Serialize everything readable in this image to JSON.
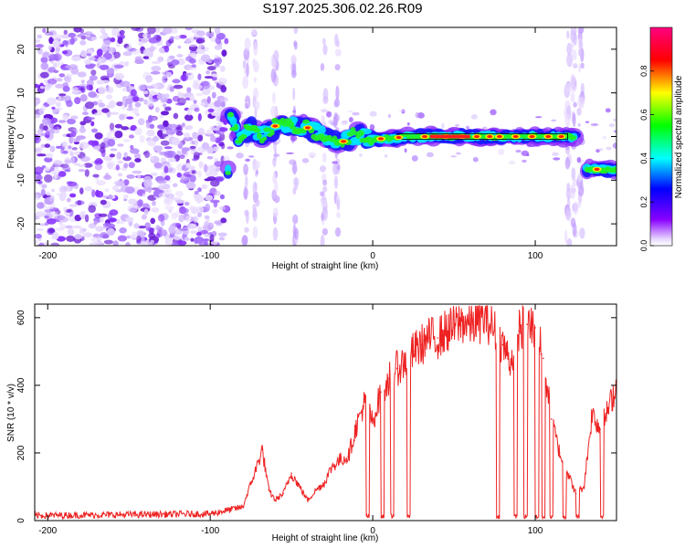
{
  "title": "S197.2025.306.02.26.R09",
  "chart_data": [
    {
      "type": "heatmap",
      "title": "S197.2025.306.02.26.R09",
      "xlabel": "Height of straight line (km)",
      "ylabel": "Frequency (Hz)",
      "xlim": [
        -208,
        150
      ],
      "ylim": [
        -25,
        25
      ],
      "xticks": [
        -200,
        -100,
        0,
        100
      ],
      "yticks": [
        -20,
        -10,
        0,
        10,
        20
      ],
      "colorbar": {
        "label": "Normalized spectral amplitude",
        "range": [
          0,
          1
        ],
        "ticks": [
          "0.0",
          "0.2",
          "0.4",
          "0.6",
          "0.8"
        ],
        "colors": [
          "#ffffff",
          "#8800ff",
          "#0000ff",
          "#00ffff",
          "#00ff00",
          "#ffff00",
          "#ff0000",
          "#ff0080"
        ]
      },
      "noise_region_km": [
        -208,
        -90
      ],
      "signal_track": [
        {
          "x": -88,
          "f": 5
        },
        {
          "x": -82,
          "f": -1
        },
        {
          "x": -76,
          "f": 2
        },
        {
          "x": -68,
          "f": 0
        },
        {
          "x": -58,
          "f": 3
        },
        {
          "x": -48,
          "f": 2.5
        },
        {
          "x": -40,
          "f": 2
        },
        {
          "x": -30,
          "f": 0
        },
        {
          "x": -20,
          "f": -1.5
        },
        {
          "x": -10,
          "f": 0.5
        },
        {
          "x": 0,
          "f": -0.5
        },
        {
          "x": 10,
          "f": -0.5
        },
        {
          "x": 20,
          "f": 0
        },
        {
          "x": 40,
          "f": 0
        },
        {
          "x": 60,
          "f": 0
        },
        {
          "x": 80,
          "f": 0
        },
        {
          "x": 100,
          "f": 0
        },
        {
          "x": 120,
          "f": 0
        },
        {
          "x": 135,
          "f": -7.5
        },
        {
          "x": 150,
          "f": -7.5
        }
      ],
      "peak_segment_km": [
        15,
        120
      ]
    },
    {
      "type": "line",
      "xlabel": "Height of straight line (km)",
      "ylabel": "SNR (10 * v/v)",
      "xlim": [
        -208,
        150
      ],
      "ylim": [
        0,
        640
      ],
      "xticks": [
        -200,
        -100,
        0,
        100
      ],
      "yticks": [
        0,
        200,
        400,
        600
      ],
      "series": [
        {
          "name": "SNR",
          "color": "#ee2222",
          "x": [
            -208,
            -100,
            -80,
            -72,
            -68,
            -64,
            -60,
            -55,
            -50,
            -45,
            -40,
            -35,
            -30,
            -25,
            -20,
            -15,
            -10,
            -5,
            0,
            5,
            10,
            15,
            20,
            25,
            30,
            35,
            40,
            45,
            50,
            55,
            60,
            65,
            70,
            75,
            80,
            85,
            90,
            95,
            100,
            105,
            110,
            115,
            120,
            125,
            130,
            135,
            140,
            145,
            150
          ],
          "values": [
            15,
            20,
            40,
            150,
            210,
            90,
            60,
            80,
            140,
            100,
            60,
            90,
            110,
            160,
            180,
            190,
            280,
            350,
            290,
            380,
            420,
            450,
            470,
            500,
            520,
            540,
            540,
            560,
            570,
            590,
            580,
            590,
            600,
            560,
            520,
            470,
            560,
            580,
            570,
            480,
            300,
            200,
            140,
            80,
            100,
            320,
            270,
            330,
            400
          ]
        }
      ],
      "dropouts_km": [
        -3,
        6,
        12,
        22,
        77,
        88,
        94,
        101,
        105,
        110,
        118,
        126,
        141
      ]
    }
  ]
}
